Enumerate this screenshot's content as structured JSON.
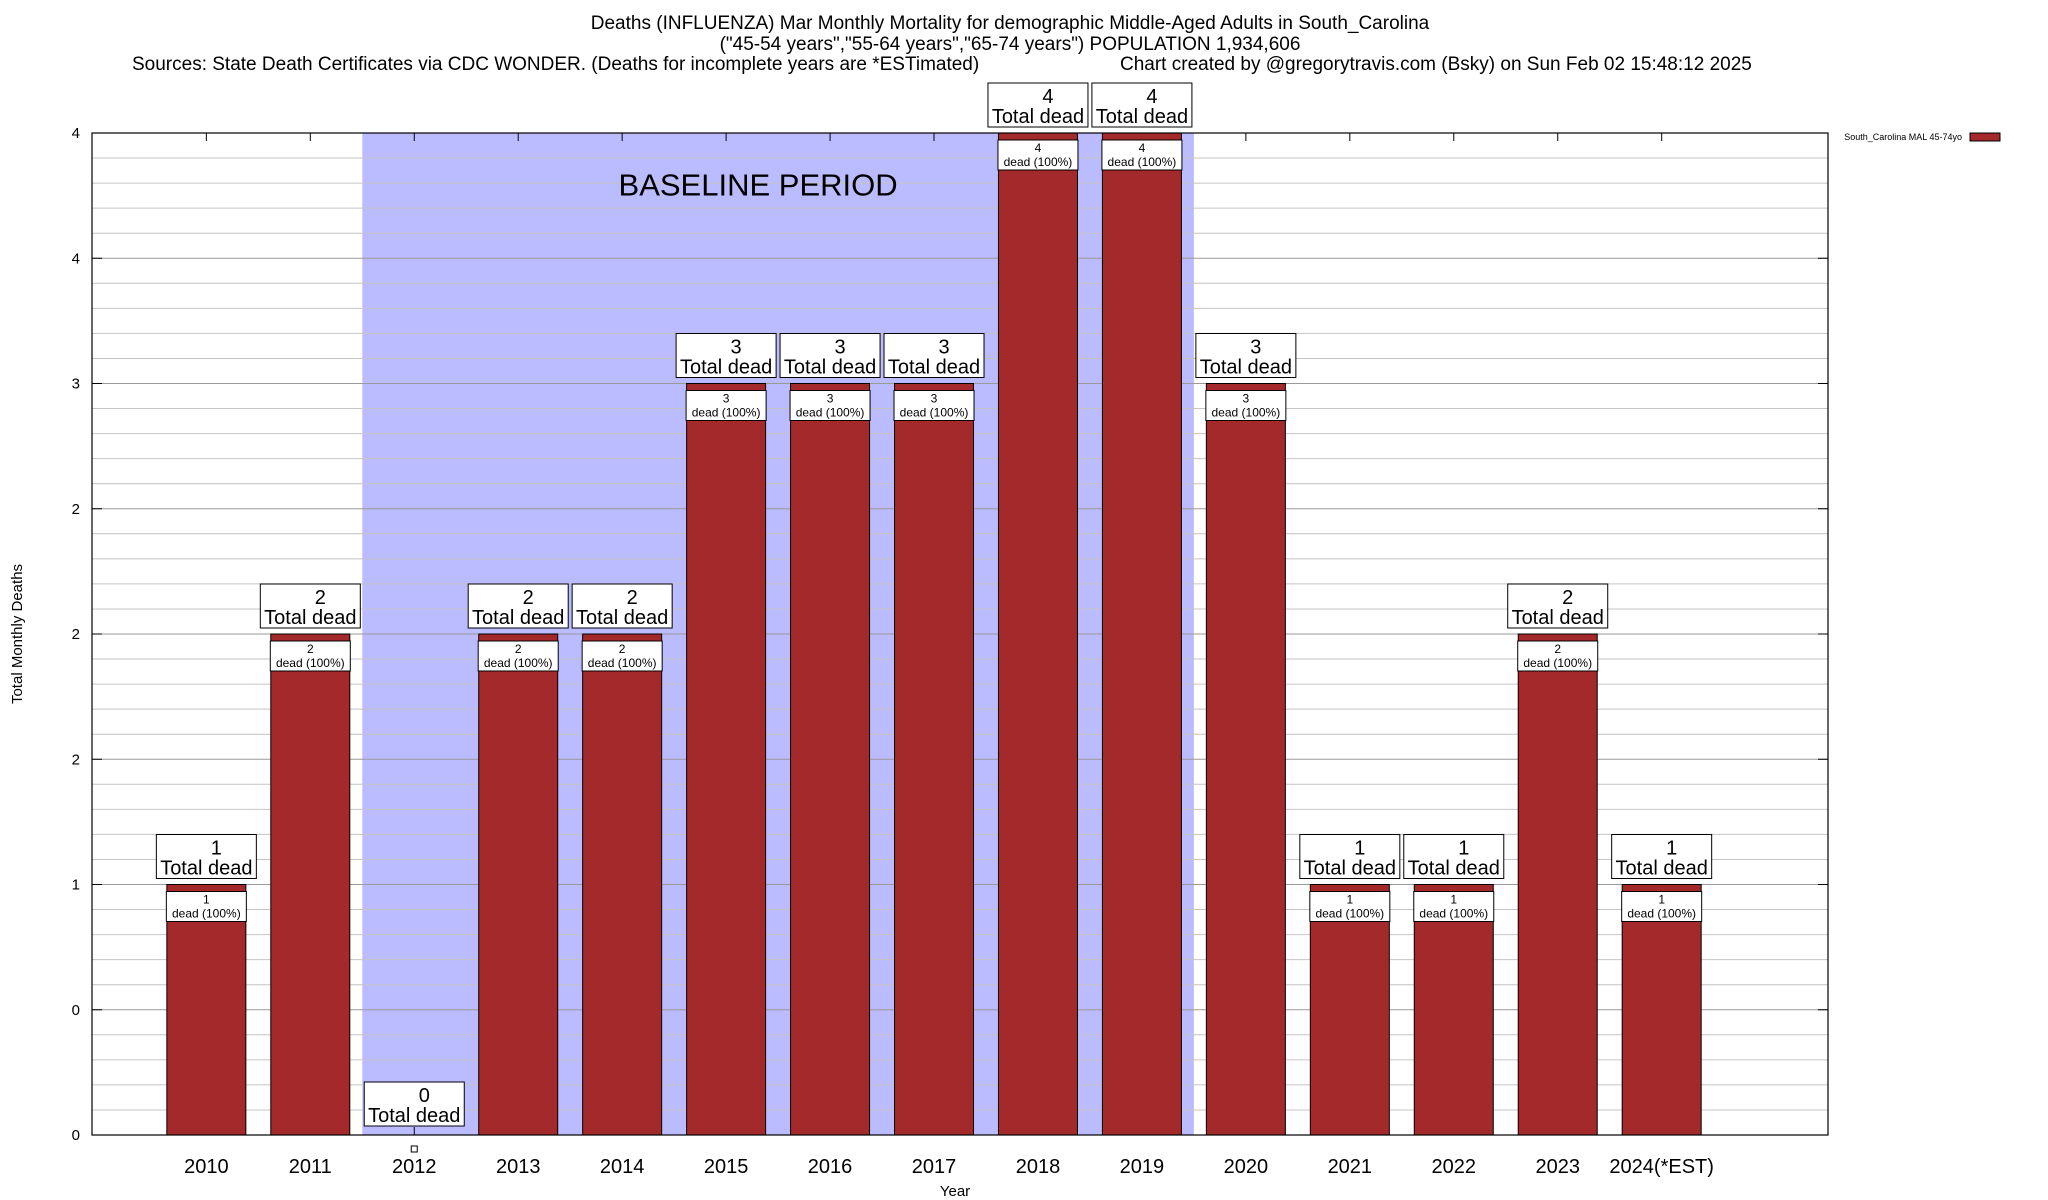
{
  "title": {
    "line1": "Deaths (INFLUENZA) Mar Monthly Mortality for demographic Middle-Aged Adults in South_Carolina",
    "line2": "(\"45-54 years\",\"55-64 years\",\"65-74 years\") POPULATION 1,934,606",
    "line3_left": "Sources: State Death Certificates via CDC WONDER. (Deaths for incomplete years are *ESTimated)",
    "line3_right": "Chart created by @gregorytravis.com (Bsky) on Sun Feb 02 15:48:12 2025"
  },
  "chart_data": {
    "type": "bar",
    "xlabel": "Year",
    "ylabel": "Total Monthly Deaths",
    "ylim": [
      0,
      4
    ],
    "y_tick_values": [
      0,
      0.5,
      1,
      1.5,
      2,
      2.5,
      3,
      3.5,
      4
    ],
    "y_tick_labels": [
      "0",
      "0",
      "1",
      "2",
      "2",
      "2",
      "3",
      "4",
      "4"
    ],
    "categories": [
      "2010",
      "2011",
      "2012",
      "2013",
      "2014",
      "2015",
      "2016",
      "2017",
      "2018",
      "2019",
      "2020",
      "2021",
      "2022",
      "2023",
      "2024(*EST)"
    ],
    "series": [
      {
        "name": "South_Carolina MAL 45-74yo",
        "color": "#a3292a",
        "values": [
          1,
          2,
          0,
          2,
          2,
          3,
          3,
          3,
          4,
          4,
          3,
          1,
          1,
          2,
          1
        ]
      }
    ],
    "top_labels": {
      "numbers": [
        "1",
        "2",
        "0",
        "2",
        "2",
        "3",
        "3",
        "3",
        "4",
        "4",
        "3",
        "1",
        "1",
        "2",
        "1"
      ],
      "text": "Total dead"
    },
    "inner_labels": {
      "numbers": [
        "1",
        "2",
        "",
        "2",
        "2",
        "3",
        "3",
        "3",
        "4",
        "4",
        "3",
        "1",
        "1",
        "2",
        "1"
      ],
      "text": "dead (100%)"
    },
    "annotation": {
      "text": "BASELINE PERIOD",
      "from_category": "2012",
      "to_category": "2019",
      "color": "#bbbbff"
    },
    "legend_position": "top-right",
    "grid": true
  }
}
